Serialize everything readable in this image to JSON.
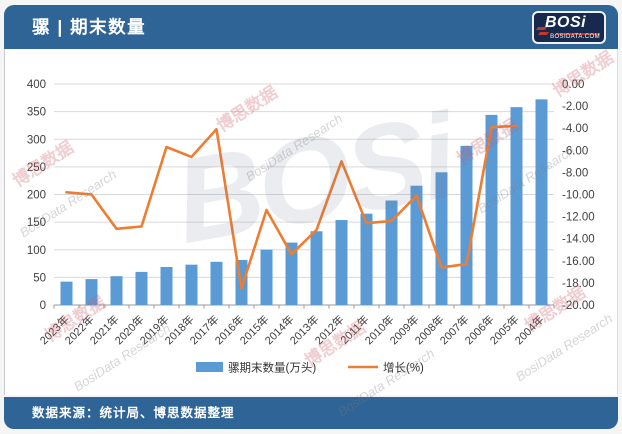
{
  "header": {
    "title": "骡 | 期末数量",
    "logo_text": "BOSi",
    "logo_sub": "BOSIDATA.COM"
  },
  "footer": {
    "source_text": "数据来源：统计局、博思数据整理"
  },
  "watermarks": {
    "cn": "博思数据",
    "en": "BosiData Research",
    "logo": "BOSi"
  },
  "colors": {
    "header_bg": "#2F6496",
    "footer_bg": "#2F6496",
    "bar": "#5B9BD5",
    "line": "#ED7D31",
    "grid": "#D9D9D9",
    "axis_line": "#9A9A9A",
    "tick_text": "#3F3F3F"
  },
  "chart_data": {
    "type": "bar",
    "subtype": "bar+line dual axis",
    "categories": [
      "2023年",
      "2022年",
      "2021年",
      "2020年",
      "2019年",
      "2018年",
      "2017年",
      "2016年",
      "2015年",
      "2014年",
      "2013年",
      "2012年",
      "2011年",
      "2010年",
      "2009年",
      "2008年",
      "2007年",
      "2006年",
      "2005年",
      "2004年"
    ],
    "series": [
      {
        "name": "骡期末数量(万头)",
        "type": "bar",
        "axis": "left",
        "values": [
          42.3,
          46.9,
          52.1,
          59.9,
          68.8,
          73.0,
          78.2,
          81.6,
          100.1,
          113.0,
          133.5,
          153.8,
          165.3,
          189.1,
          215.9,
          240.2,
          288.1,
          344.1,
          358.1,
          372.2
        ]
      },
      {
        "name": "增长(%)",
        "type": "line",
        "axis": "right",
        "values": [
          -9.8,
          -10.0,
          -13.1,
          -12.9,
          -5.7,
          -6.6,
          -4.1,
          -18.5,
          -11.4,
          -15.4,
          -13.2,
          -7.0,
          -12.6,
          -12.4,
          -10.1,
          -16.6,
          -16.3,
          -3.9,
          -3.8,
          null
        ]
      }
    ],
    "left_axis": {
      "min": 0,
      "max": 400,
      "step": 50,
      "ticks": [
        "0",
        "50",
        "100",
        "150",
        "200",
        "250",
        "300",
        "350",
        "400"
      ]
    },
    "right_axis": {
      "min": -20,
      "max": 0,
      "step": 2,
      "ticks": [
        "0.00",
        "-2.00",
        "-4.00",
        "-6.00",
        "-8.00",
        "-10.00",
        "-12.00",
        "-14.00",
        "-16.00",
        "-18.00",
        "-20.00"
      ]
    },
    "grid": "horizontal",
    "legend_position": "bottom",
    "title": "骡 | 期末数量"
  }
}
